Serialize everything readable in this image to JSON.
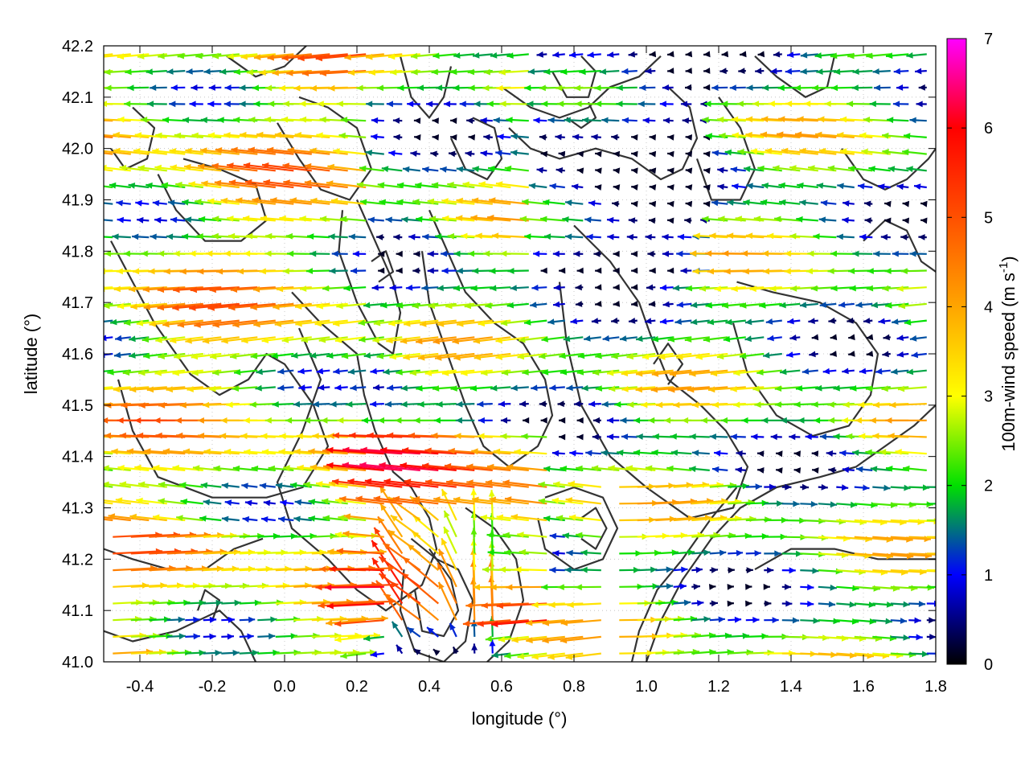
{
  "chart_data": {
    "type": "vector-field",
    "xlabel": "longitude (°)",
    "ylabel": "latitude (°)",
    "xlim": [
      -0.5,
      1.8
    ],
    "ylim": [
      41.0,
      42.2
    ],
    "x_ticks": [
      "-0.4",
      "-0.2",
      "0.0",
      "0.2",
      "0.4",
      "0.6",
      "0.8",
      "1.0",
      "1.2",
      "1.4",
      "1.6",
      "1.8"
    ],
    "y_ticks": [
      "41.0",
      "41.1",
      "41.2",
      "41.3",
      "41.4",
      "41.5",
      "41.6",
      "41.7",
      "41.8",
      "41.9",
      "42.0",
      "42.1",
      "42.2"
    ],
    "grid": true,
    "colorbar": {
      "label_main": "100m-wind speed (m s",
      "label_sup": "-1",
      "label_end": ")",
      "range": [
        0,
        7
      ],
      "ticks": [
        "0",
        "1",
        "2",
        "3",
        "4",
        "5",
        "6",
        "7"
      ],
      "color_stops": [
        {
          "value": 0,
          "color": "#000000"
        },
        {
          "value": 1,
          "color": "#0000ff"
        },
        {
          "value": 2,
          "color": "#00e000"
        },
        {
          "value": 3,
          "color": "#ffff00"
        },
        {
          "value": 4,
          "color": "#ffa500"
        },
        {
          "value": 5,
          "color": "#ff5000"
        },
        {
          "value": 6,
          "color": "#ff0000"
        },
        {
          "value": 7,
          "color": "#ff00ff"
        }
      ]
    },
    "contour_color": "#333333",
    "contours": [
      [
        [
          -0.48,
          41.82
        ],
        [
          -0.42,
          41.74
        ],
        [
          -0.36,
          41.66
        ],
        [
          -0.26,
          41.56
        ],
        [
          -0.18,
          41.52
        ],
        [
          -0.1,
          41.55
        ],
        [
          -0.05,
          41.6
        ],
        [
          0.0,
          41.58
        ],
        [
          0.08,
          41.5
        ],
        [
          0.12,
          41.42
        ],
        [
          0.05,
          41.34
        ],
        [
          -0.05,
          41.32
        ],
        [
          -0.2,
          41.32
        ],
        [
          -0.35,
          41.36
        ],
        [
          -0.42,
          41.45
        ],
        [
          -0.46,
          41.55
        ]
      ],
      [
        [
          -0.35,
          41.95
        ],
        [
          -0.3,
          41.88
        ],
        [
          -0.22,
          41.82
        ],
        [
          -0.12,
          41.82
        ],
        [
          -0.05,
          41.86
        ],
        [
          -0.08,
          41.93
        ],
        [
          -0.18,
          41.96
        ],
        [
          -0.28,
          41.98
        ]
      ],
      [
        [
          0.02,
          41.72
        ],
        [
          0.1,
          41.66
        ],
        [
          0.2,
          41.6
        ],
        [
          0.22,
          41.52
        ],
        [
          0.25,
          41.45
        ],
        [
          0.3,
          41.37
        ],
        [
          0.35,
          41.34
        ],
        [
          0.4,
          41.28
        ],
        [
          0.42,
          41.22
        ],
        [
          0.38,
          41.15
        ],
        [
          0.28,
          41.1
        ],
        [
          0.2,
          41.14
        ],
        [
          0.12,
          41.2
        ],
        [
          0.02,
          41.26
        ],
        [
          -0.02,
          41.35
        ],
        [
          0.05,
          41.45
        ],
        [
          0.1,
          41.55
        ],
        [
          0.04,
          41.65
        ]
      ],
      [
        [
          0.2,
          41.9
        ],
        [
          0.25,
          41.82
        ],
        [
          0.3,
          41.74
        ],
        [
          0.32,
          41.68
        ],
        [
          0.3,
          41.6
        ],
        [
          0.26,
          41.62
        ],
        [
          0.2,
          41.7
        ],
        [
          0.15,
          41.8
        ],
        [
          0.16,
          41.88
        ]
      ],
      [
        [
          0.4,
          41.88
        ],
        [
          0.45,
          41.8
        ],
        [
          0.5,
          41.72
        ],
        [
          0.58,
          41.66
        ],
        [
          0.66,
          41.62
        ],
        [
          0.72,
          41.55
        ],
        [
          0.74,
          41.48
        ],
        [
          0.7,
          41.42
        ],
        [
          0.62,
          41.38
        ],
        [
          0.55,
          41.42
        ],
        [
          0.5,
          41.5
        ],
        [
          0.45,
          41.6
        ],
        [
          0.4,
          41.7
        ],
        [
          0.38,
          41.8
        ]
      ],
      [
        [
          0.8,
          41.85
        ],
        [
          0.9,
          41.78
        ],
        [
          0.98,
          41.7
        ],
        [
          1.02,
          41.62
        ],
        [
          1.06,
          41.55
        ],
        [
          1.15,
          41.5
        ],
        [
          1.22,
          41.45
        ],
        [
          1.28,
          41.38
        ],
        [
          1.24,
          41.3
        ],
        [
          1.12,
          41.28
        ],
        [
          1.0,
          41.34
        ],
        [
          0.9,
          41.4
        ],
        [
          0.82,
          41.5
        ],
        [
          0.78,
          41.62
        ],
        [
          0.76,
          41.74
        ]
      ],
      [
        [
          0.35,
          41.24
        ],
        [
          0.42,
          41.2
        ],
        [
          0.48,
          41.18
        ],
        [
          0.52,
          41.12
        ],
        [
          0.5,
          41.04
        ],
        [
          0.44,
          41.0
        ],
        [
          0.36,
          41.02
        ],
        [
          0.32,
          41.1
        ],
        [
          0.33,
          41.18
        ]
      ],
      [
        [
          0.4,
          41.22
        ],
        [
          0.46,
          41.16
        ],
        [
          0.48,
          41.1
        ],
        [
          0.44,
          41.05
        ],
        [
          0.38,
          41.06
        ],
        [
          0.36,
          41.14
        ]
      ],
      [
        [
          0.5,
          41.3
        ],
        [
          0.58,
          41.26
        ],
        [
          0.64,
          41.2
        ],
        [
          0.66,
          41.12
        ],
        [
          0.62,
          41.04
        ],
        [
          0.56,
          41.0
        ]
      ],
      [
        [
          0.72,
          41.32
        ],
        [
          0.8,
          41.34
        ],
        [
          0.88,
          41.32
        ],
        [
          0.92,
          41.26
        ],
        [
          0.88,
          41.2
        ],
        [
          0.8,
          41.18
        ],
        [
          0.72,
          41.22
        ],
        [
          0.7,
          41.28
        ]
      ],
      [
        [
          0.82,
          41.28
        ],
        [
          0.86,
          41.3
        ],
        [
          0.89,
          41.26
        ],
        [
          0.86,
          41.22
        ],
        [
          0.82,
          41.24
        ]
      ],
      [
        [
          1.0,
          41.0
        ],
        [
          1.04,
          41.08
        ],
        [
          1.1,
          41.16
        ],
        [
          1.18,
          41.24
        ],
        [
          1.26,
          41.3
        ],
        [
          1.36,
          41.34
        ],
        [
          1.48,
          41.36
        ],
        [
          1.58,
          41.38
        ],
        [
          1.66,
          41.42
        ],
        [
          1.74,
          41.46
        ],
        [
          1.8,
          41.5
        ]
      ],
      [
        [
          0.96,
          41.0
        ],
        [
          0.98,
          41.06
        ],
        [
          1.03,
          41.14
        ],
        [
          1.1,
          41.2
        ],
        [
          1.18,
          41.28
        ],
        [
          1.25,
          41.34
        ]
      ],
      [
        [
          1.3,
          41.18
        ],
        [
          1.4,
          41.22
        ],
        [
          1.52,
          41.22
        ],
        [
          1.64,
          41.2
        ],
        [
          1.72,
          41.2
        ],
        [
          1.8,
          41.2
        ]
      ],
      [
        [
          1.25,
          41.74
        ],
        [
          1.35,
          41.72
        ],
        [
          1.48,
          41.7
        ],
        [
          1.58,
          41.66
        ],
        [
          1.64,
          41.6
        ],
        [
          1.62,
          41.52
        ],
        [
          1.56,
          41.46
        ],
        [
          1.46,
          41.44
        ],
        [
          1.36,
          41.48
        ],
        [
          1.28,
          41.56
        ],
        [
          1.24,
          41.66
        ]
      ],
      [
        [
          1.54,
          42.0
        ],
        [
          1.6,
          41.94
        ],
        [
          1.66,
          41.92
        ],
        [
          1.72,
          41.94
        ],
        [
          1.78,
          41.98
        ],
        [
          1.8,
          42.0
        ]
      ],
      [
        [
          1.6,
          41.82
        ],
        [
          1.66,
          41.86
        ],
        [
          1.72,
          41.84
        ],
        [
          1.76,
          41.78
        ],
        [
          1.8,
          41.76
        ]
      ],
      [
        [
          0.6,
          42.12
        ],
        [
          0.68,
          42.08
        ],
        [
          0.76,
          42.06
        ],
        [
          0.84,
          42.08
        ],
        [
          0.9,
          42.12
        ],
        [
          0.98,
          42.14
        ],
        [
          1.04,
          42.18
        ]
      ],
      [
        [
          0.62,
          42.04
        ],
        [
          0.68,
          42.0
        ],
        [
          0.76,
          41.98
        ],
        [
          0.86,
          42.0
        ],
        [
          0.96,
          41.98
        ],
        [
          1.04,
          41.94
        ],
        [
          1.1,
          41.96
        ],
        [
          1.14,
          42.02
        ],
        [
          1.12,
          42.08
        ],
        [
          1.06,
          42.12
        ]
      ],
      [
        [
          0.74,
          42.15
        ],
        [
          0.78,
          42.1
        ],
        [
          0.84,
          42.1
        ],
        [
          0.86,
          42.15
        ],
        [
          0.82,
          42.18
        ]
      ],
      [
        [
          0.78,
          42.06
        ],
        [
          0.82,
          42.04
        ],
        [
          0.86,
          42.06
        ],
        [
          0.84,
          42.09
        ]
      ],
      [
        [
          1.3,
          42.18
        ],
        [
          1.36,
          42.14
        ],
        [
          1.44,
          42.1
        ],
        [
          1.5,
          42.12
        ],
        [
          1.52,
          42.18
        ]
      ],
      [
        [
          1.2,
          42.1
        ],
        [
          1.26,
          42.04
        ],
        [
          1.3,
          41.96
        ],
        [
          1.26,
          41.9
        ],
        [
          1.18,
          41.9
        ],
        [
          1.14,
          41.98
        ]
      ],
      [
        [
          0.32,
          42.18
        ],
        [
          0.35,
          42.1
        ],
        [
          0.4,
          42.06
        ],
        [
          0.44,
          42.1
        ],
        [
          0.46,
          42.16
        ]
      ],
      [
        [
          0.46,
          42.02
        ],
        [
          0.5,
          41.96
        ],
        [
          0.56,
          41.94
        ],
        [
          0.6,
          41.98
        ],
        [
          0.58,
          42.04
        ],
        [
          0.52,
          42.06
        ]
      ],
      [
        [
          -0.02,
          42.05
        ],
        [
          0.04,
          41.98
        ],
        [
          0.1,
          41.92
        ],
        [
          0.18,
          41.9
        ],
        [
          0.24,
          41.96
        ],
        [
          0.2,
          42.04
        ],
        [
          0.12,
          42.08
        ],
        [
          0.04,
          42.1
        ]
      ],
      [
        [
          -0.16,
          42.18
        ],
        [
          -0.08,
          42.14
        ],
        [
          0.0,
          42.16
        ],
        [
          0.06,
          42.2
        ]
      ],
      [
        [
          -0.48,
          42.0
        ],
        [
          -0.44,
          41.96
        ],
        [
          -0.38,
          41.98
        ],
        [
          -0.36,
          42.04
        ],
        [
          -0.42,
          42.08
        ]
      ],
      [
        [
          -0.5,
          41.22
        ],
        [
          -0.42,
          41.2
        ],
        [
          -0.32,
          41.18
        ],
        [
          -0.22,
          41.18
        ],
        [
          -0.14,
          41.22
        ],
        [
          -0.06,
          41.24
        ]
      ],
      [
        [
          -0.5,
          41.06
        ],
        [
          -0.42,
          41.04
        ],
        [
          -0.3,
          41.06
        ],
        [
          -0.18,
          41.1
        ],
        [
          -0.12,
          41.06
        ],
        [
          -0.08,
          41.0
        ]
      ],
      [
        [
          -0.24,
          41.1
        ],
        [
          -0.22,
          41.14
        ],
        [
          -0.18,
          41.12
        ],
        [
          -0.2,
          41.08
        ]
      ],
      [
        [
          1.02,
          41.58
        ],
        [
          1.06,
          41.62
        ],
        [
          1.1,
          41.58
        ],
        [
          1.06,
          41.54
        ]
      ],
      [
        [
          0.24,
          41.78
        ],
        [
          0.28,
          41.8
        ],
        [
          0.3,
          41.76
        ],
        [
          0.26,
          41.74
        ]
      ]
    ]
  }
}
